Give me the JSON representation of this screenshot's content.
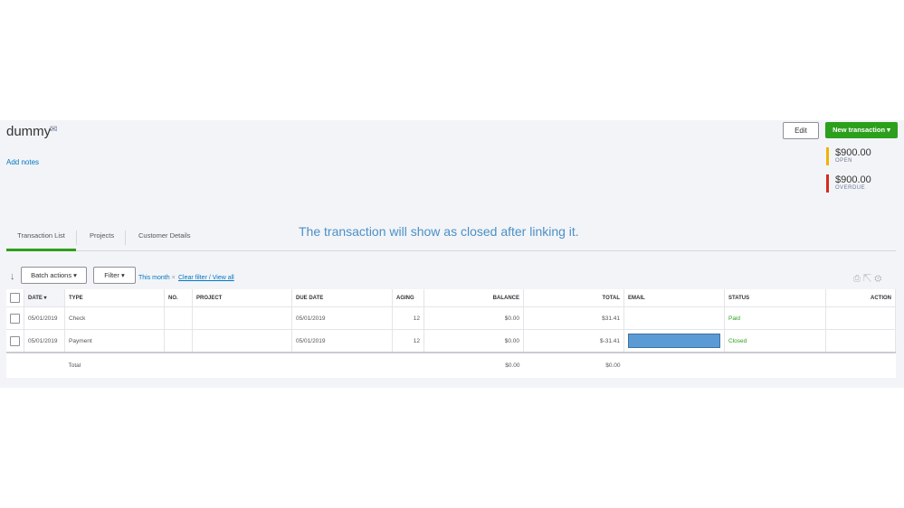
{
  "customer": {
    "name": "dummy",
    "add_notes": "Add notes"
  },
  "header": {
    "edit": "Edit",
    "new_transaction": "New transaction ▾"
  },
  "summary": [
    {
      "amount": "$900.00",
      "label": "OPEN",
      "color": "#f2b300"
    },
    {
      "amount": "$900.00",
      "label": "OVERDUE",
      "color": "#d52b1e"
    }
  ],
  "tabs": [
    "Transaction List",
    "Projects",
    "Customer Details"
  ],
  "annotation": "The transaction will show as closed after linking it.",
  "toolbar": {
    "batch": "Batch actions ▾",
    "filter": "Filter ▾",
    "this_month": "This month",
    "clear": "Clear filter / View all"
  },
  "columns": [
    "DATE ▾",
    "TYPE",
    "NO.",
    "PROJECT",
    "DUE DATE",
    "AGING",
    "BALANCE",
    "TOTAL",
    "EMAIL",
    "STATUS",
    "ACTION"
  ],
  "rows": [
    {
      "date": "05/01/2019",
      "type": "Check",
      "no": "",
      "project": "",
      "due": "05/01/2019",
      "aging": "12",
      "balance": "$0.00",
      "total": "$31.41",
      "email": "",
      "status": "Paid"
    },
    {
      "date": "05/01/2019",
      "type": "Payment",
      "no": "",
      "project": "",
      "due": "05/01/2019",
      "aging": "12",
      "balance": "$0.00",
      "total": "$-31.41",
      "email": "",
      "status": "Closed"
    }
  ],
  "totals": {
    "label": "Total",
    "balance": "$0.00",
    "total": "$0.00"
  }
}
